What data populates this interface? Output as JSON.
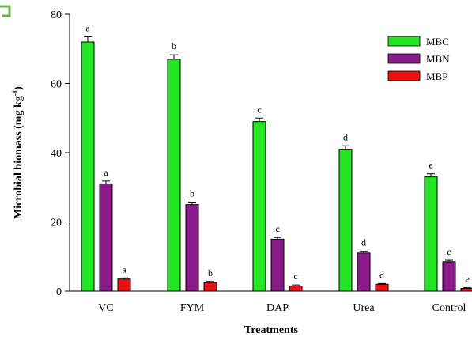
{
  "chart_data": {
    "type": "bar",
    "title": "",
    "xlabel": "Treatments",
    "ylabel": "Microbial biomass (mg kg",
    "ylabel_sup": "-1",
    "ylabel_close": ")",
    "ylim": [
      0,
      80
    ],
    "yticks": [
      "0",
      "20",
      "40",
      "60",
      "80"
    ],
    "categories": [
      "VC",
      "FYM",
      "DAP",
      "Urea",
      "Control"
    ],
    "legend_position": "top-right",
    "series": [
      {
        "name": "MBC",
        "color": "#22e622",
        "values": [
          72,
          67,
          49,
          41,
          33
        ],
        "errors": [
          1.5,
          1.3,
          1.0,
          1.0,
          0.9
        ],
        "letters": [
          "a",
          "b",
          "c",
          "d",
          "e"
        ]
      },
      {
        "name": "MBN",
        "color": "#8b1a8b",
        "values": [
          31,
          25,
          15,
          11,
          8.5
        ],
        "errors": [
          0.8,
          0.7,
          0.5,
          0.5,
          0.4
        ],
        "letters": [
          "a",
          "b",
          "c",
          "d",
          "e"
        ]
      },
      {
        "name": "MBP",
        "color": "#ee1111",
        "values": [
          3.5,
          2.5,
          1.5,
          2.0,
          0.8
        ],
        "errors": [
          0.3,
          0.3,
          0.3,
          0.2,
          0.2
        ],
        "letters": [
          "a",
          "b",
          "c",
          "d",
          "e"
        ]
      }
    ]
  }
}
